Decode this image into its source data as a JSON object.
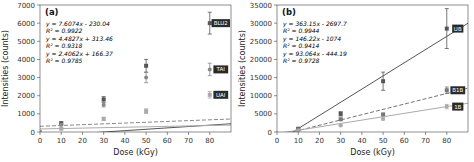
{
  "chart_data": [
    {
      "type": "scatter",
      "title": "(a)",
      "x_label": "Dose (kGy)",
      "y_label": "Intensities (counts)",
      "xlim": [
        0,
        90
      ],
      "ylim": [
        0,
        7000
      ],
      "xticks": [
        0,
        10,
        20,
        30,
        40,
        50,
        60,
        70,
        80
      ],
      "yticks": [
        0,
        1000,
        2000,
        3000,
        4000,
        5000,
        6000,
        7000
      ],
      "grid": false,
      "series": [
        {
          "name": "BLU2",
          "color": "#555555",
          "marker": "square",
          "line_style": "solid",
          "x": [
            0,
            10,
            30,
            50,
            80
          ],
          "values": [
            0,
            480,
            1800,
            3650,
            6000
          ],
          "errors": [
            0,
            80,
            150,
            350,
            600
          ],
          "slope": 7.6074,
          "intercept": -230.04,
          "equation": "y = 7.6074x - 230.04",
          "r2": "R² = 0.9922"
        },
        {
          "name": "TAI",
          "color": "#888888",
          "marker": "circle",
          "line_style": "dashed",
          "x": [
            0,
            10,
            30,
            50,
            80
          ],
          "values": [
            0,
            400,
            1500,
            3000,
            3450
          ],
          "errors": [
            0,
            60,
            120,
            280,
            340
          ],
          "slope": 4.4827,
          "intercept": 313.46,
          "equation": "y = 4.4827x + 313.46",
          "r2": "R² = 0.9318"
        },
        {
          "name": "UAI",
          "color": "#aaaaaa",
          "marker": "square",
          "line_style": "solid",
          "x": [
            0,
            10,
            30,
            50,
            80
          ],
          "values": [
            0,
            180,
            720,
            1150,
            2050
          ],
          "errors": [
            0,
            40,
            90,
            130,
            180
          ],
          "slope": 2.4062,
          "intercept": 166.37,
          "equation": "y = 2.4062x + 166.37",
          "r2": "R² = 0.9785"
        }
      ]
    },
    {
      "type": "scatter",
      "title": "(b)",
      "x_label": "Dose (kGy)",
      "y_label": "Intensities (counts)",
      "xlim": [
        0,
        90
      ],
      "ylim": [
        0,
        35000
      ],
      "xticks": [
        0,
        10,
        20,
        30,
        40,
        50,
        60,
        70,
        80
      ],
      "yticks": [
        0,
        5000,
        10000,
        15000,
        20000,
        25000,
        30000,
        35000
      ],
      "grid": false,
      "series": [
        {
          "name": "UB",
          "color": "#555555",
          "marker": "square",
          "line_style": "solid",
          "x": [
            10,
            30,
            50,
            80
          ],
          "values": [
            900,
            5000,
            14000,
            28500
          ],
          "errors": [
            200,
            600,
            2500,
            5500
          ],
          "slope": 363.15,
          "intercept": -2697.7,
          "equation": "y = 363.15x - 2697.7",
          "r2": "R² = 0.9944"
        },
        {
          "name": "B1B",
          "color": "#777777",
          "marker": "square",
          "line_style": "dashed",
          "x": [
            10,
            30,
            50,
            80
          ],
          "values": [
            700,
            3500,
            4800,
            11500
          ],
          "errors": [
            100,
            300,
            400,
            900
          ],
          "slope": 146.22,
          "intercept": -1074,
          "equation": "y = 146.22x - 1074",
          "r2": "R² = 0.9414"
        },
        {
          "name": "1B",
          "color": "#aaaaaa",
          "marker": "circle",
          "line_style": "solid",
          "x": [
            10,
            30,
            50,
            80
          ],
          "values": [
            500,
            1800,
            3600,
            7000
          ],
          "errors": [
            80,
            200,
            300,
            600
          ],
          "slope": 93.064,
          "intercept": -444.19,
          "equation": "y = 93.064x - 444.19",
          "r2": "R² = 0.9728"
        }
      ]
    }
  ]
}
